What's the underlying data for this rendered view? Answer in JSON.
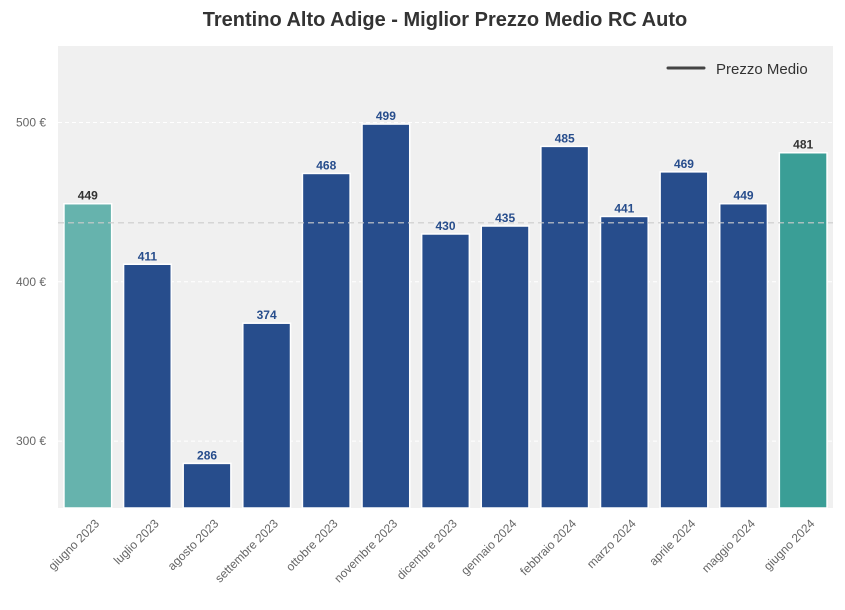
{
  "chart_data": {
    "type": "bar",
    "title": "Trentino Alto Adige - Miglior Prezzo Medio RC Auto",
    "categories": [
      "giugno 2023",
      "luglio 2023",
      "agosto 2023",
      "settembre 2023",
      "ottobre 2023",
      "novembre 2023",
      "dicembre 2023",
      "gennaio 2024",
      "febbraio 2024",
      "marzo 2024",
      "aprile 2024",
      "maggio 2024",
      "giugno 2024"
    ],
    "values": [
      449,
      411,
      286,
      374,
      468,
      499,
      430,
      435,
      485,
      441,
      469,
      449,
      481
    ],
    "value_labels": [
      "449",
      "411",
      "286",
      "374",
      "468",
      "499",
      "430",
      "435",
      "485",
      "441",
      "469",
      "449",
      "481"
    ],
    "bar_colors": [
      "#66b3ad",
      "#274d8c",
      "#274d8c",
      "#274d8c",
      "#274d8c",
      "#274d8c",
      "#274d8c",
      "#274d8c",
      "#274d8c",
      "#274d8c",
      "#274d8c",
      "#274d8c",
      "#3a9e96"
    ],
    "label_colors": [
      "#333333",
      "#274d8c",
      "#274d8c",
      "#274d8c",
      "#274d8c",
      "#274d8c",
      "#274d8c",
      "#274d8c",
      "#274d8c",
      "#274d8c",
      "#274d8c",
      "#274d8c",
      "#333333"
    ],
    "ylim": [
      258,
      548
    ],
    "yticks": [
      300,
      400,
      500
    ],
    "ytick_labels": [
      "300 €",
      "400 €",
      "500 €"
    ],
    "mean_value": 437,
    "legend": {
      "label": "Prezzo Medio",
      "position": "top-right"
    },
    "xlabel": "",
    "ylabel": "",
    "grid": true
  },
  "colors": {
    "plot_bg": "#f0f0f0",
    "grid": "#ffffff",
    "mean_line": "#cccccc",
    "legend_line": "#444444"
  }
}
